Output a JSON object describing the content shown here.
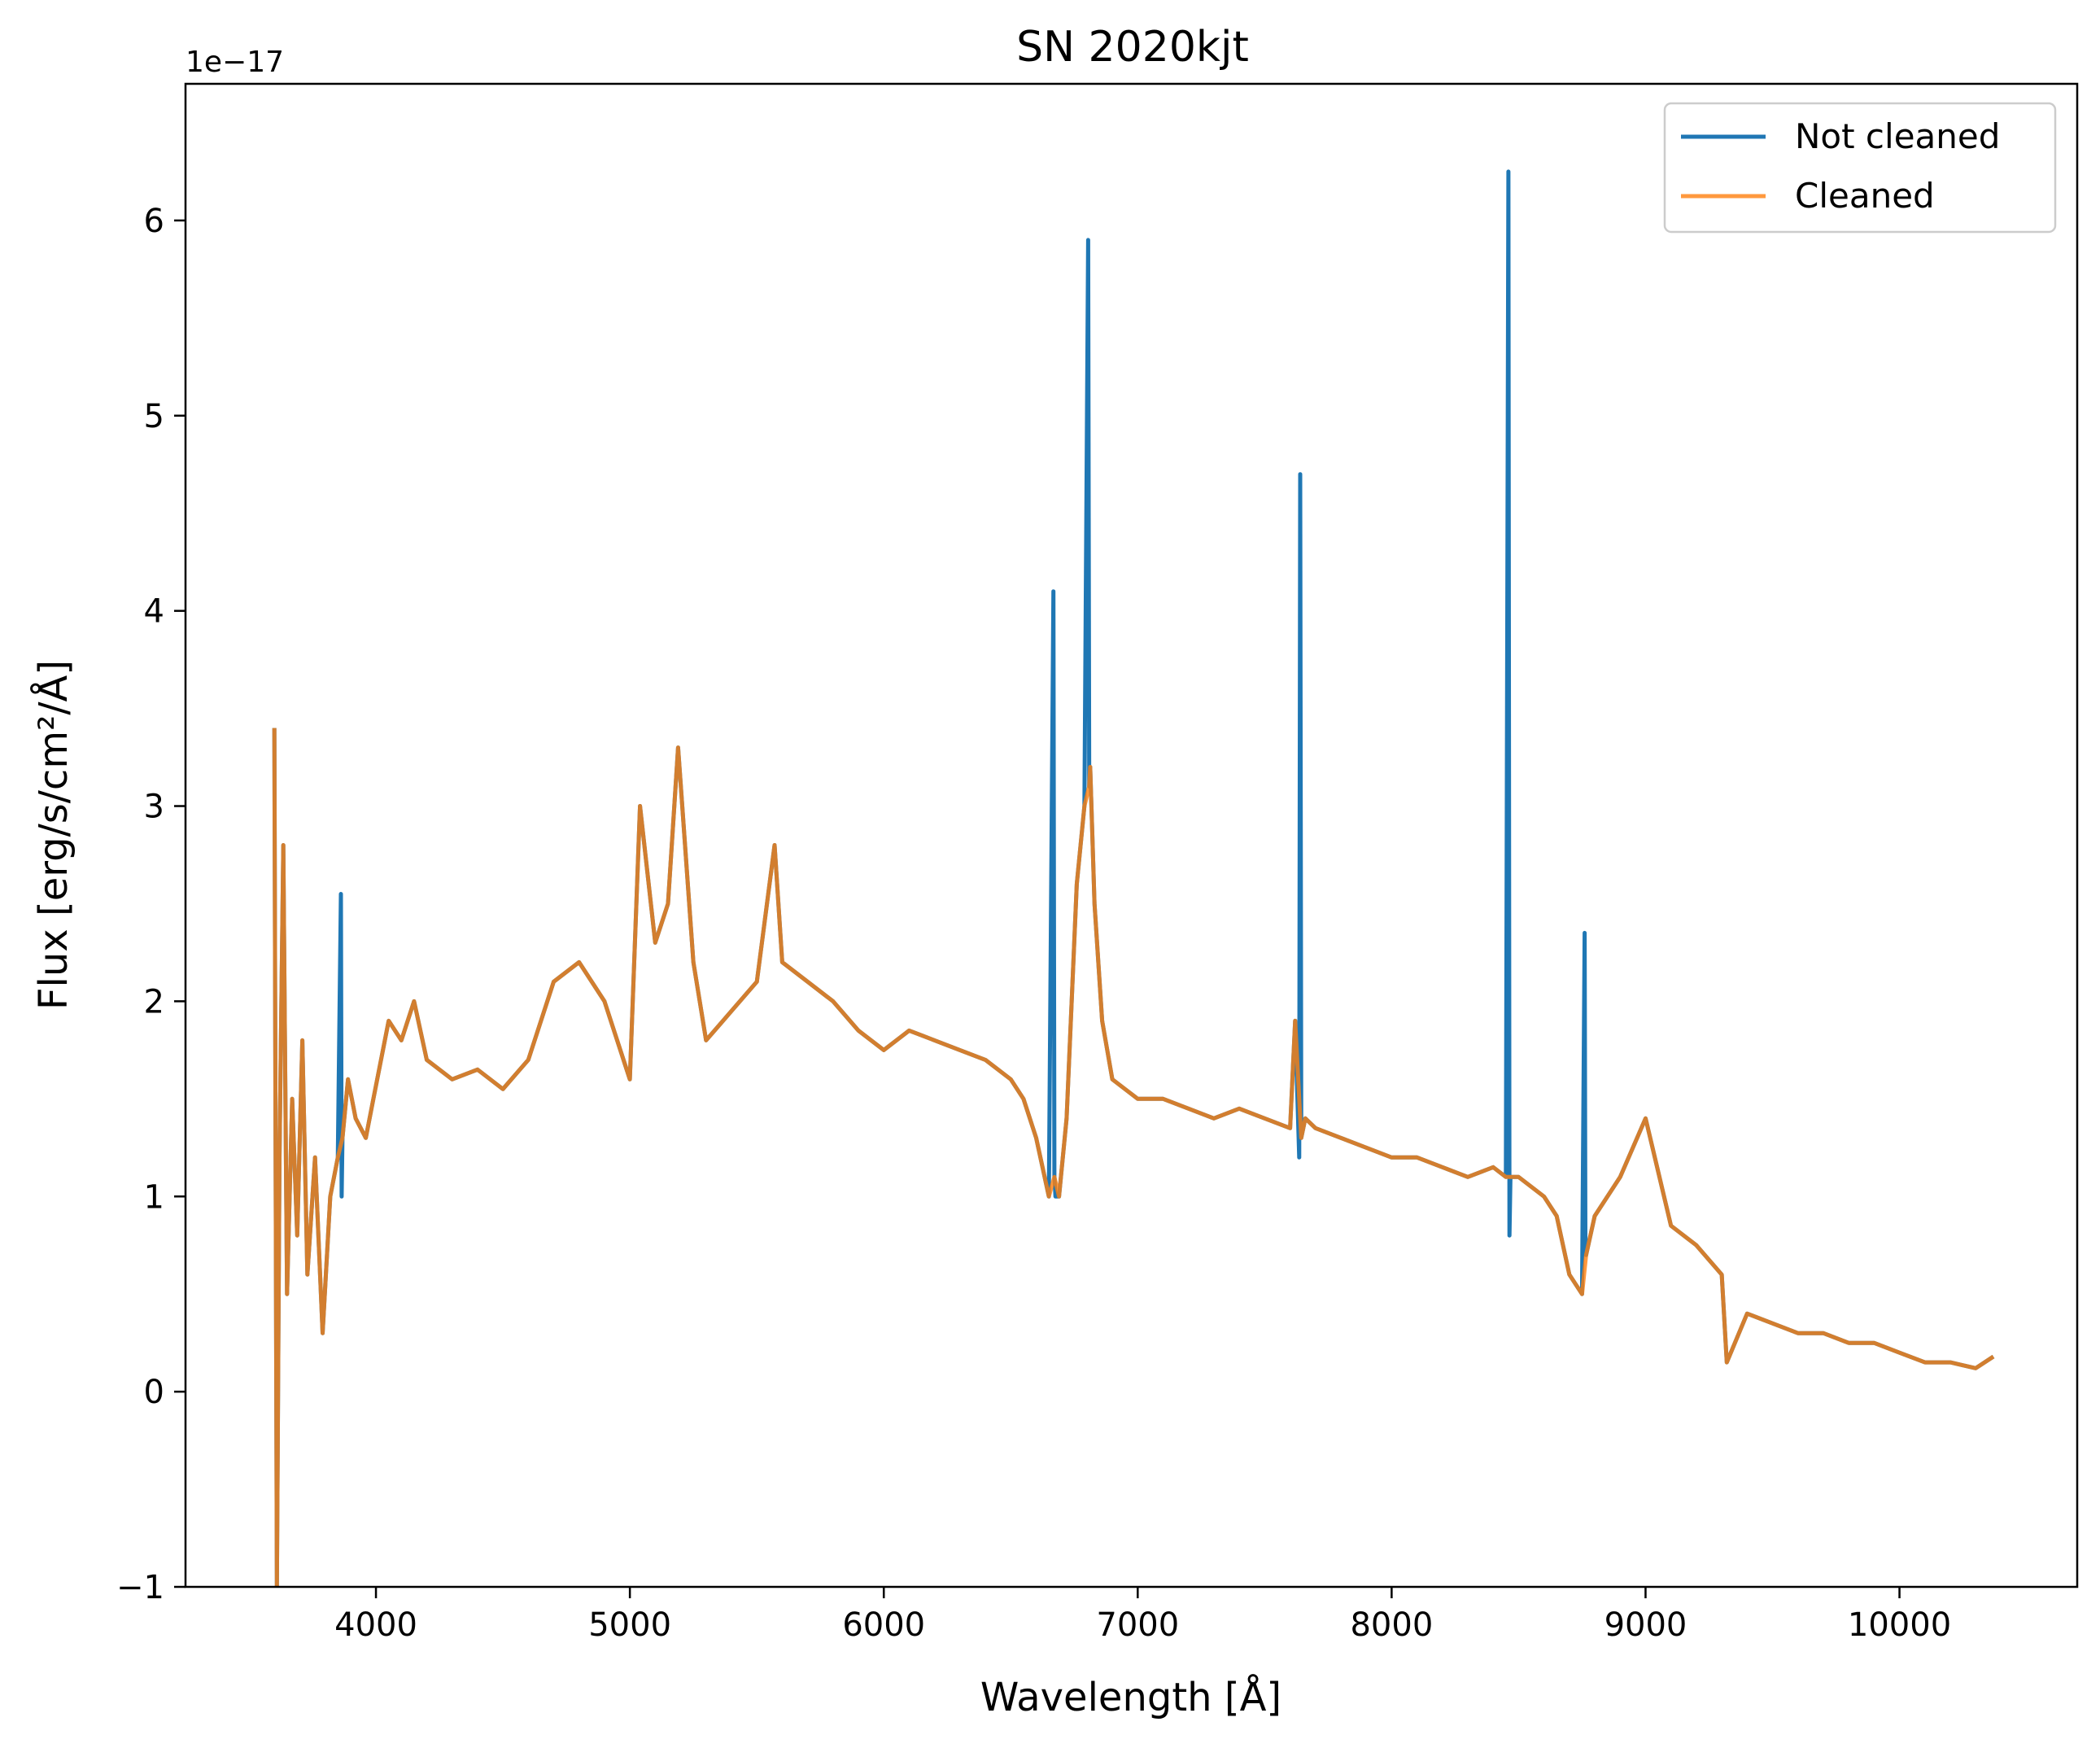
{
  "chart_data": {
    "type": "line",
    "title": "SN 2020kjt",
    "xlabel": "Wavelength [Å]",
    "ylabel": "Flux [erg/s/cm²/Å]",
    "y_offset_label": "1e−17",
    "xlim": [
      3250,
      10700
    ],
    "ylim": [
      -1,
      6.7
    ],
    "xticks": [
      4000,
      5000,
      6000,
      7000,
      8000,
      9000,
      10000
    ],
    "yticks": [
      -1,
      0,
      1,
      2,
      3,
      4,
      5,
      6
    ],
    "ytick_labels": [
      "−1",
      "0",
      "1",
      "2",
      "3",
      "4",
      "5",
      "6"
    ],
    "grid": false,
    "legend": "top-right",
    "series": [
      {
        "name": "Not cleaned",
        "color": "#1f77b4",
        "x": [
          3600,
          3610,
          3620,
          3635,
          3650,
          3670,
          3690,
          3710,
          3730,
          3760,
          3790,
          3820,
          3850,
          3862,
          3865,
          3868,
          3890,
          3920,
          3960,
          3990,
          4050,
          4100,
          4150,
          4200,
          4300,
          4400,
          4500,
          4600,
          4700,
          4800,
          4900,
          5000,
          5040,
          5100,
          5150,
          5190,
          5250,
          5300,
          5400,
          5500,
          5570,
          5600,
          5700,
          5800,
          5900,
          6000,
          6100,
          6200,
          6300,
          6400,
          6500,
          6550,
          6600,
          6650,
          6668,
          6672,
          6676,
          6690,
          6720,
          6760,
          6790,
          6805,
          6809,
          6813,
          6830,
          6860,
          6900,
          6950,
          7000,
          7100,
          7200,
          7300,
          7400,
          7500,
          7600,
          7620,
          7636,
          7640,
          7644,
          7660,
          7700,
          7800,
          7900,
          8000,
          8100,
          8200,
          8300,
          8400,
          8450,
          8460,
          8464,
          8468,
          8500,
          8600,
          8650,
          8700,
          8750,
          8760,
          8763,
          8766,
          8800,
          8900,
          9000,
          9100,
          9200,
          9300,
          9320,
          9400,
          9500,
          9600,
          9700,
          9800,
          9900,
          10000,
          10100,
          10200,
          10300,
          10370
        ],
        "y": [
          3.4,
          -1.0,
          1.2,
          2.8,
          0.5,
          1.5,
          0.8,
          1.8,
          0.6,
          1.2,
          0.3,
          1.0,
          1.2,
          2.55,
          1.0,
          1.3,
          1.6,
          1.4,
          1.3,
          1.5,
          1.9,
          1.8,
          2.0,
          1.7,
          1.6,
          1.65,
          1.55,
          1.7,
          2.1,
          2.2,
          2.0,
          1.6,
          3.0,
          2.3,
          2.5,
          3.3,
          2.2,
          1.8,
          1.95,
          2.1,
          2.8,
          2.2,
          2.1,
          2.0,
          1.85,
          1.75,
          1.85,
          1.8,
          1.75,
          1.7,
          1.6,
          1.5,
          1.3,
          1.0,
          4.1,
          1.1,
          1.0,
          1.0,
          1.4,
          2.6,
          3.0,
          5.9,
          3.1,
          3.2,
          2.5,
          1.9,
          1.6,
          1.55,
          1.5,
          1.5,
          1.45,
          1.4,
          1.45,
          1.4,
          1.35,
          1.9,
          1.2,
          4.7,
          1.3,
          1.4,
          1.35,
          1.3,
          1.25,
          1.2,
          1.2,
          1.15,
          1.1,
          1.15,
          1.1,
          6.25,
          0.8,
          1.1,
          1.1,
          1.0,
          0.9,
          0.6,
          0.5,
          2.35,
          0.8,
          0.7,
          0.9,
          1.1,
          1.4,
          0.85,
          0.75,
          0.6,
          0.15,
          0.4,
          0.35,
          0.3,
          0.3,
          0.25,
          0.25,
          0.2,
          0.15,
          0.15,
          0.12,
          0.18
        ]
      },
      {
        "name": "Cleaned",
        "color": "#ff7f0e",
        "x": [
          3600,
          3610,
          3620,
          3635,
          3650,
          3670,
          3690,
          3710,
          3730,
          3760,
          3790,
          3820,
          3850,
          3868,
          3890,
          3920,
          3960,
          3990,
          4050,
          4100,
          4150,
          4200,
          4300,
          4400,
          4500,
          4600,
          4700,
          4800,
          4900,
          5000,
          5040,
          5100,
          5150,
          5190,
          5250,
          5300,
          5400,
          5500,
          5570,
          5600,
          5700,
          5800,
          5900,
          6000,
          6100,
          6200,
          6300,
          6400,
          6500,
          6550,
          6600,
          6650,
          6672,
          6690,
          6720,
          6760,
          6790,
          6809,
          6813,
          6830,
          6860,
          6900,
          6950,
          7000,
          7100,
          7200,
          7300,
          7400,
          7500,
          7600,
          7620,
          7644,
          7660,
          7700,
          7800,
          7900,
          8000,
          8100,
          8200,
          8300,
          8400,
          8450,
          8468,
          8500,
          8600,
          8650,
          8700,
          8750,
          8766,
          8800,
          8900,
          9000,
          9100,
          9200,
          9300,
          9320,
          9400,
          9500,
          9600,
          9700,
          9800,
          9900,
          10000,
          10100,
          10200,
          10300,
          10370
        ],
        "y": [
          3.4,
          -1.0,
          1.2,
          2.8,
          0.5,
          1.5,
          0.8,
          1.8,
          0.6,
          1.2,
          0.3,
          1.0,
          1.2,
          1.3,
          1.6,
          1.4,
          1.3,
          1.5,
          1.9,
          1.8,
          2.0,
          1.7,
          1.6,
          1.65,
          1.55,
          1.7,
          2.1,
          2.2,
          2.0,
          1.6,
          3.0,
          2.3,
          2.5,
          3.3,
          2.2,
          1.8,
          1.95,
          2.1,
          2.8,
          2.2,
          2.1,
          2.0,
          1.85,
          1.75,
          1.85,
          1.8,
          1.75,
          1.7,
          1.6,
          1.5,
          1.3,
          1.0,
          1.1,
          1.0,
          1.4,
          2.6,
          3.0,
          3.1,
          3.2,
          2.5,
          1.9,
          1.6,
          1.55,
          1.5,
          1.5,
          1.45,
          1.4,
          1.45,
          1.4,
          1.35,
          1.9,
          1.3,
          1.4,
          1.35,
          1.3,
          1.25,
          1.2,
          1.2,
          1.15,
          1.1,
          1.15,
          1.1,
          1.1,
          1.1,
          1.0,
          0.9,
          0.6,
          0.5,
          0.7,
          0.9,
          1.1,
          1.4,
          0.85,
          0.75,
          0.6,
          0.15,
          0.4,
          0.35,
          0.3,
          0.3,
          0.25,
          0.25,
          0.2,
          0.15,
          0.15,
          0.12,
          0.18
        ]
      }
    ]
  }
}
